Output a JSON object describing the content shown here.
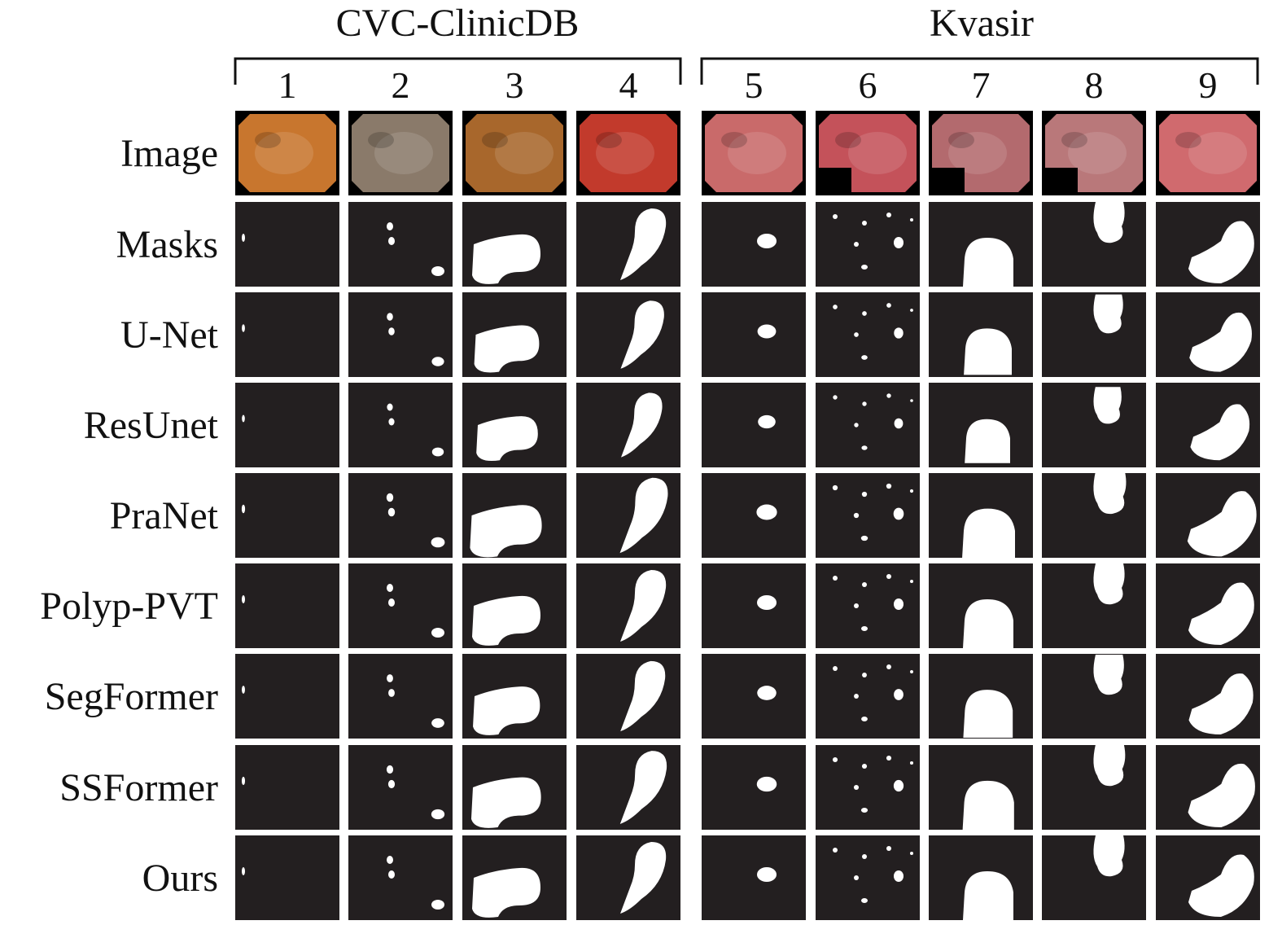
{
  "groups": [
    {
      "title": "CVC-ClinicDB",
      "columns": [
        "1",
        "2",
        "3",
        "4"
      ]
    },
    {
      "title": "Kvasir",
      "columns": [
        "5",
        "6",
        "7",
        "8",
        "9"
      ]
    }
  ],
  "rows": [
    {
      "label": "Image",
      "kind": "photo"
    },
    {
      "label": "Masks",
      "kind": "mask"
    },
    {
      "label": "U-Net",
      "kind": "mask"
    },
    {
      "label": "ResUnet",
      "kind": "mask"
    },
    {
      "label": "PraNet",
      "kind": "mask"
    },
    {
      "label": "Polyp-PVT",
      "kind": "mask"
    },
    {
      "label": "SegFormer",
      "kind": "mask"
    },
    {
      "label": "SSFormer",
      "kind": "mask"
    },
    {
      "label": "Ours",
      "kind": "mask"
    }
  ],
  "colors": {
    "mask_background": "#231f20",
    "mask_foreground": "#ffffff",
    "photo_palette": [
      "#c8762e",
      "#8a7a6a",
      "#a8672c",
      "#c23a2c",
      "#c96a6a",
      "#c4525a",
      "#b36a6e",
      "#b9787a",
      "#d06a6e"
    ]
  }
}
